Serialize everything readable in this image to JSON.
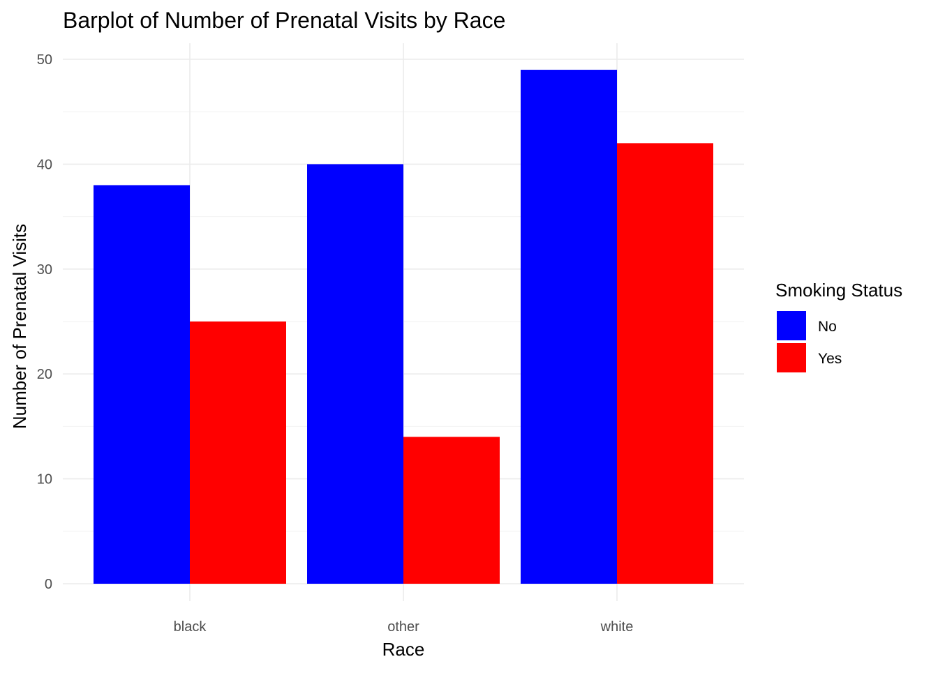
{
  "chart_data": {
    "type": "bar",
    "title": "Barplot of Number of Prenatal Visits by Race",
    "xlabel": "Race",
    "ylabel": "Number of Prenatal Visits",
    "categories": [
      "black",
      "other",
      "white"
    ],
    "series": [
      {
        "name": "No",
        "color": "#0000ff",
        "values": [
          38,
          40,
          49
        ]
      },
      {
        "name": "Yes",
        "color": "#ff0000",
        "values": [
          25,
          14,
          42
        ]
      }
    ],
    "ylim": [
      0,
      50
    ],
    "yticks": [
      0,
      10,
      20,
      30,
      40,
      50
    ],
    "grid": true,
    "legend": {
      "title": "Smoking Status",
      "placement": "right"
    }
  }
}
